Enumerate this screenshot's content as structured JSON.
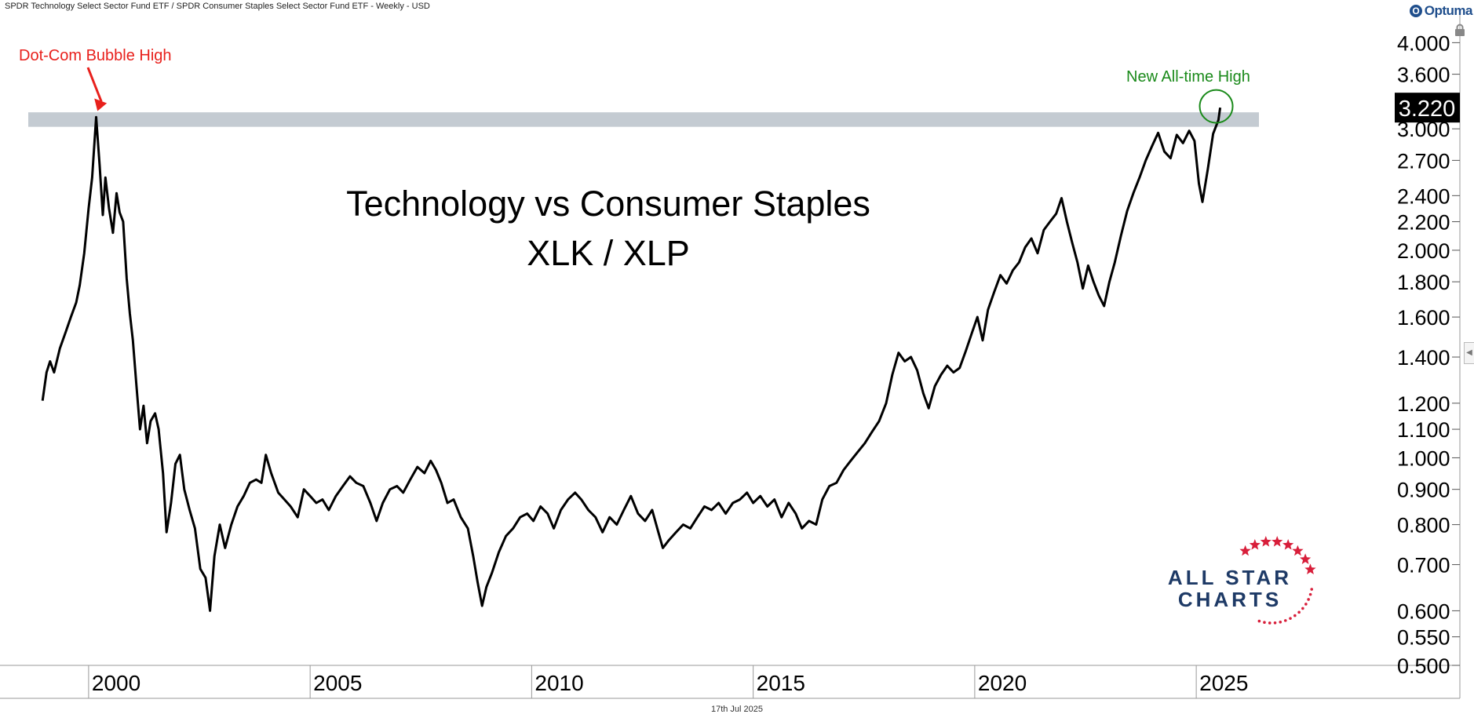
{
  "header": {
    "title": "SPDR Technology Select Sector Fund ETF / SPDR Consumer Staples Select Sector Fund ETF - Weekly - USD",
    "brand": "Optuma"
  },
  "footer": {
    "date": "17th Jul 2025"
  },
  "colors": {
    "line": "#000000",
    "resistance_band": "#c4cbd2",
    "dotcom_annotation": "#e8201c",
    "ath_annotation": "#1a8a1a",
    "logo_navy": "#1e3a66",
    "logo_red": "#d81e3a"
  },
  "logo": {
    "line1": "ALL STAR",
    "line2": "CHARTS"
  },
  "icons": {
    "brand": "optuma-logo-icon",
    "lock": "lock-icon",
    "collapse": "chevron-left-icon"
  },
  "chart_data": {
    "type": "line",
    "scale": "log",
    "title": "Technology vs Consumer Staples",
    "subtitle": "XLK / XLP",
    "xlabel": "",
    "ylabel": "",
    "xlim": [
      1998.0,
      2030.95
    ],
    "ylim": [
      0.5,
      4.4
    ],
    "grid": false,
    "x_ticks": [
      {
        "value": 2000,
        "label": "2000"
      },
      {
        "value": 2005,
        "label": "2005"
      },
      {
        "value": 2010,
        "label": "2010"
      },
      {
        "value": 2015,
        "label": "2015"
      },
      {
        "value": 2020,
        "label": "2020"
      },
      {
        "value": 2025,
        "label": "2025"
      }
    ],
    "y_ticks": [
      {
        "value": 4.0,
        "label": "4.000"
      },
      {
        "value": 3.6,
        "label": "3.600"
      },
      {
        "value": 3.0,
        "label": "3.000"
      },
      {
        "value": 2.7,
        "label": "2.700"
      },
      {
        "value": 2.4,
        "label": "2.400"
      },
      {
        "value": 2.2,
        "label": "2.200"
      },
      {
        "value": 2.0,
        "label": "2.000"
      },
      {
        "value": 1.8,
        "label": "1.800"
      },
      {
        "value": 1.6,
        "label": "1.600"
      },
      {
        "value": 1.4,
        "label": "1.400"
      },
      {
        "value": 1.2,
        "label": "1.200"
      },
      {
        "value": 1.1,
        "label": "1.100"
      },
      {
        "value": 1.0,
        "label": "1.000"
      },
      {
        "value": 0.9,
        "label": "0.900"
      },
      {
        "value": 0.8,
        "label": "0.800"
      },
      {
        "value": 0.7,
        "label": "0.700"
      },
      {
        "value": 0.6,
        "label": "0.600"
      },
      {
        "value": 0.55,
        "label": "0.550"
      },
      {
        "value": 0.5,
        "label": "0.500"
      }
    ],
    "last_value": 3.22,
    "last_value_label": "3.220",
    "resistance_zone": [
      3.02,
      3.17
    ],
    "annotations": [
      {
        "text": "Dot-Com Bubble High",
        "x": 2000.2,
        "y": 3.15,
        "color": "#e8201c"
      },
      {
        "text": "New All-time High",
        "x": 2025.45,
        "y": 3.25,
        "color": "#1a8a1a"
      }
    ],
    "series": [
      {
        "name": "XLK / XLP",
        "points": [
          [
            1998.96,
            1.21
          ],
          [
            1999.05,
            1.33
          ],
          [
            1999.13,
            1.38
          ],
          [
            1999.22,
            1.33
          ],
          [
            1999.35,
            1.44
          ],
          [
            1999.48,
            1.52
          ],
          [
            1999.6,
            1.6
          ],
          [
            1999.72,
            1.68
          ],
          [
            1999.8,
            1.78
          ],
          [
            1999.9,
            1.98
          ],
          [
            2000.0,
            2.3
          ],
          [
            2000.08,
            2.55
          ],
          [
            2000.17,
            3.12
          ],
          [
            2000.25,
            2.65
          ],
          [
            2000.32,
            2.25
          ],
          [
            2000.38,
            2.55
          ],
          [
            2000.46,
            2.3
          ],
          [
            2000.55,
            2.12
          ],
          [
            2000.63,
            2.42
          ],
          [
            2000.7,
            2.27
          ],
          [
            2000.78,
            2.2
          ],
          [
            2000.86,
            1.82
          ],
          [
            2000.93,
            1.62
          ],
          [
            2001.0,
            1.48
          ],
          [
            2001.08,
            1.27
          ],
          [
            2001.16,
            1.1
          ],
          [
            2001.24,
            1.19
          ],
          [
            2001.32,
            1.05
          ],
          [
            2001.4,
            1.13
          ],
          [
            2001.5,
            1.16
          ],
          [
            2001.58,
            1.1
          ],
          [
            2001.68,
            0.95
          ],
          [
            2001.76,
            0.78
          ],
          [
            2001.86,
            0.86
          ],
          [
            2001.96,
            0.98
          ],
          [
            2002.06,
            1.01
          ],
          [
            2002.16,
            0.9
          ],
          [
            2002.28,
            0.84
          ],
          [
            2002.4,
            0.79
          ],
          [
            2002.52,
            0.69
          ],
          [
            2002.64,
            0.67
          ],
          [
            2002.74,
            0.6
          ],
          [
            2002.84,
            0.72
          ],
          [
            2002.96,
            0.8
          ],
          [
            2003.08,
            0.74
          ],
          [
            2003.22,
            0.8
          ],
          [
            2003.36,
            0.85
          ],
          [
            2003.5,
            0.88
          ],
          [
            2003.64,
            0.92
          ],
          [
            2003.78,
            0.93
          ],
          [
            2003.9,
            0.92
          ],
          [
            2004.0,
            1.01
          ],
          [
            2004.12,
            0.95
          ],
          [
            2004.28,
            0.89
          ],
          [
            2004.42,
            0.87
          ],
          [
            2004.56,
            0.85
          ],
          [
            2004.72,
            0.82
          ],
          [
            2004.86,
            0.9
          ],
          [
            2005.0,
            0.88
          ],
          [
            2005.14,
            0.86
          ],
          [
            2005.28,
            0.87
          ],
          [
            2005.42,
            0.84
          ],
          [
            2005.58,
            0.88
          ],
          [
            2005.74,
            0.91
          ],
          [
            2005.9,
            0.94
          ],
          [
            2006.04,
            0.92
          ],
          [
            2006.2,
            0.91
          ],
          [
            2006.36,
            0.86
          ],
          [
            2006.5,
            0.81
          ],
          [
            2006.64,
            0.86
          ],
          [
            2006.8,
            0.9
          ],
          [
            2006.96,
            0.91
          ],
          [
            2007.1,
            0.89
          ],
          [
            2007.26,
            0.93
          ],
          [
            2007.42,
            0.97
          ],
          [
            2007.58,
            0.95
          ],
          [
            2007.72,
            0.99
          ],
          [
            2007.84,
            0.96
          ],
          [
            2007.96,
            0.92
          ],
          [
            2008.1,
            0.86
          ],
          [
            2008.24,
            0.87
          ],
          [
            2008.4,
            0.82
          ],
          [
            2008.56,
            0.79
          ],
          [
            2008.68,
            0.72
          ],
          [
            2008.78,
            0.66
          ],
          [
            2008.88,
            0.61
          ],
          [
            2008.98,
            0.65
          ],
          [
            2009.1,
            0.68
          ],
          [
            2009.26,
            0.73
          ],
          [
            2009.42,
            0.77
          ],
          [
            2009.58,
            0.79
          ],
          [
            2009.74,
            0.82
          ],
          [
            2009.9,
            0.83
          ],
          [
            2010.04,
            0.81
          ],
          [
            2010.2,
            0.85
          ],
          [
            2010.36,
            0.83
          ],
          [
            2010.5,
            0.79
          ],
          [
            2010.66,
            0.84
          ],
          [
            2010.82,
            0.87
          ],
          [
            2010.98,
            0.89
          ],
          [
            2011.12,
            0.87
          ],
          [
            2011.28,
            0.84
          ],
          [
            2011.44,
            0.82
          ],
          [
            2011.6,
            0.78
          ],
          [
            2011.76,
            0.82
          ],
          [
            2011.92,
            0.8
          ],
          [
            2012.08,
            0.84
          ],
          [
            2012.24,
            0.88
          ],
          [
            2012.4,
            0.83
          ],
          [
            2012.56,
            0.81
          ],
          [
            2012.72,
            0.84
          ],
          [
            2012.86,
            0.78
          ],
          [
            2012.96,
            0.74
          ],
          [
            2013.1,
            0.76
          ],
          [
            2013.26,
            0.78
          ],
          [
            2013.42,
            0.8
          ],
          [
            2013.58,
            0.79
          ],
          [
            2013.74,
            0.82
          ],
          [
            2013.9,
            0.85
          ],
          [
            2014.06,
            0.84
          ],
          [
            2014.22,
            0.86
          ],
          [
            2014.38,
            0.83
          ],
          [
            2014.54,
            0.86
          ],
          [
            2014.7,
            0.87
          ],
          [
            2014.86,
            0.89
          ],
          [
            2015.0,
            0.86
          ],
          [
            2015.16,
            0.88
          ],
          [
            2015.32,
            0.85
          ],
          [
            2015.48,
            0.87
          ],
          [
            2015.64,
            0.82
          ],
          [
            2015.8,
            0.86
          ],
          [
            2015.96,
            0.83
          ],
          [
            2016.1,
            0.79
          ],
          [
            2016.26,
            0.81
          ],
          [
            2016.42,
            0.8
          ],
          [
            2016.56,
            0.87
          ],
          [
            2016.72,
            0.91
          ],
          [
            2016.88,
            0.92
          ],
          [
            2017.04,
            0.96
          ],
          [
            2017.2,
            0.99
          ],
          [
            2017.36,
            1.02
          ],
          [
            2017.52,
            1.05
          ],
          [
            2017.68,
            1.09
          ],
          [
            2017.84,
            1.13
          ],
          [
            2018.0,
            1.2
          ],
          [
            2018.14,
            1.32
          ],
          [
            2018.28,
            1.42
          ],
          [
            2018.42,
            1.38
          ],
          [
            2018.56,
            1.4
          ],
          [
            2018.7,
            1.34
          ],
          [
            2018.84,
            1.24
          ],
          [
            2018.96,
            1.18
          ],
          [
            2019.1,
            1.27
          ],
          [
            2019.24,
            1.32
          ],
          [
            2019.38,
            1.36
          ],
          [
            2019.52,
            1.33
          ],
          [
            2019.66,
            1.35
          ],
          [
            2019.8,
            1.43
          ],
          [
            2019.94,
            1.52
          ],
          [
            2020.06,
            1.6
          ],
          [
            2020.18,
            1.48
          ],
          [
            2020.3,
            1.64
          ],
          [
            2020.44,
            1.74
          ],
          [
            2020.58,
            1.84
          ],
          [
            2020.72,
            1.79
          ],
          [
            2020.86,
            1.87
          ],
          [
            2021.0,
            1.92
          ],
          [
            2021.14,
            2.02
          ],
          [
            2021.28,
            2.08
          ],
          [
            2021.42,
            1.98
          ],
          [
            2021.56,
            2.14
          ],
          [
            2021.7,
            2.2
          ],
          [
            2021.84,
            2.26
          ],
          [
            2021.96,
            2.38
          ],
          [
            2022.08,
            2.2
          ],
          [
            2022.2,
            2.05
          ],
          [
            2022.32,
            1.92
          ],
          [
            2022.44,
            1.76
          ],
          [
            2022.56,
            1.9
          ],
          [
            2022.68,
            1.8
          ],
          [
            2022.8,
            1.72
          ],
          [
            2022.92,
            1.66
          ],
          [
            2023.04,
            1.8
          ],
          [
            2023.16,
            1.92
          ],
          [
            2023.3,
            2.1
          ],
          [
            2023.44,
            2.28
          ],
          [
            2023.58,
            2.42
          ],
          [
            2023.72,
            2.55
          ],
          [
            2023.86,
            2.7
          ],
          [
            2024.0,
            2.83
          ],
          [
            2024.14,
            2.96
          ],
          [
            2024.28,
            2.78
          ],
          [
            2024.42,
            2.72
          ],
          [
            2024.56,
            2.94
          ],
          [
            2024.7,
            2.86
          ],
          [
            2024.84,
            2.98
          ],
          [
            2024.96,
            2.88
          ],
          [
            2025.06,
            2.5
          ],
          [
            2025.14,
            2.35
          ],
          [
            2025.26,
            2.62
          ],
          [
            2025.38,
            2.95
          ],
          [
            2025.5,
            3.09
          ],
          [
            2025.54,
            3.22
          ]
        ]
      }
    ]
  }
}
